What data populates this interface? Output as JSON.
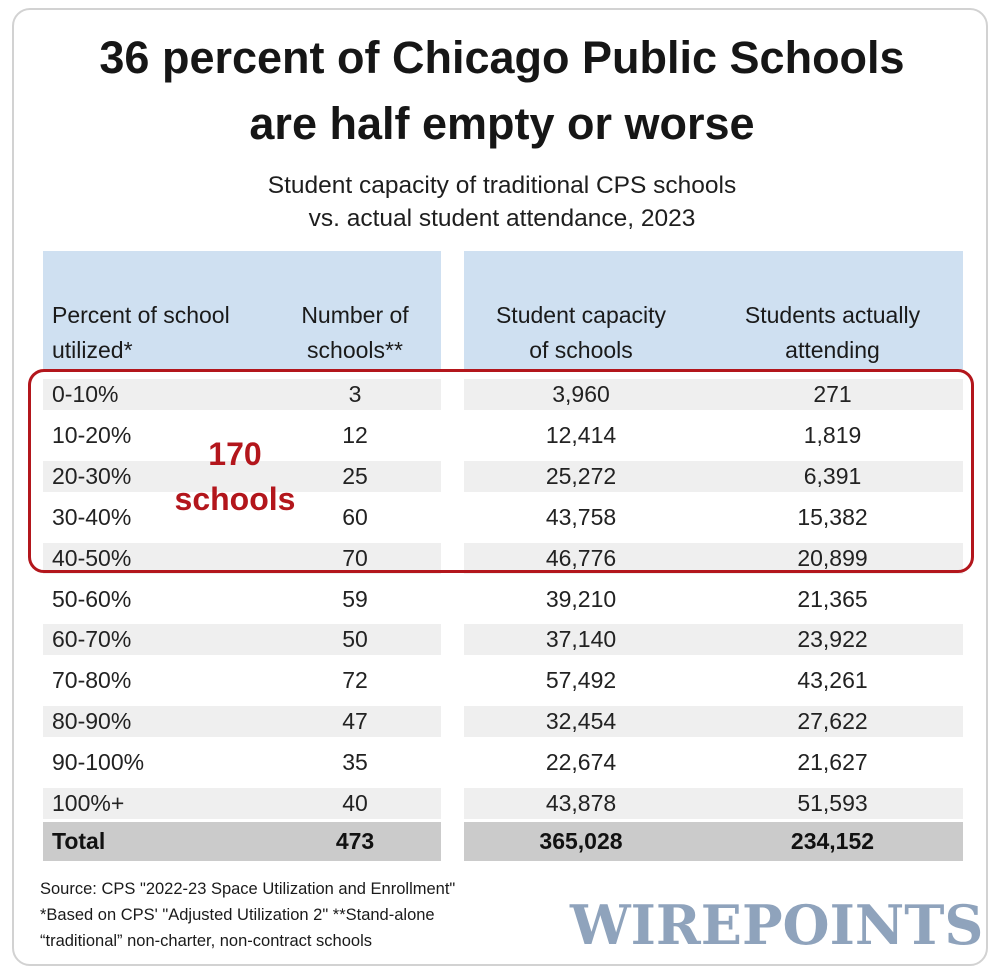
{
  "title_line1": "36 percent of Chicago Public Schools",
  "title_line2": "are half empty or worse",
  "subtitle_line1": "Student capacity of traditional CPS schools",
  "subtitle_line2": "vs. actual student attendance, 2023",
  "headers": [
    {
      "line1": "Percent of school",
      "line2": "utilized*"
    },
    {
      "line1": "Number of",
      "line2": "schools**"
    },
    {
      "line1": "Student capacity",
      "line2": "of schools"
    },
    {
      "line1": "Students actually",
      "line2": "attending"
    }
  ],
  "callout_line1": "170",
  "callout_line2": "schools",
  "colors": {
    "header_bg": "#cfe0f1",
    "highlight": "#b3161c",
    "total_bg": "#cbcbcb",
    "brand": "#8fa3bc"
  },
  "chart_data": {
    "type": "table",
    "columns": [
      "Percent of school utilized*",
      "Number of schools**",
      "Student capacity of schools",
      "Students actually attending"
    ],
    "rows": [
      [
        "0-10%",
        "3",
        "3,960",
        "271"
      ],
      [
        "10-20%",
        "12",
        "12,414",
        "1,819"
      ],
      [
        "20-30%",
        "25",
        "25,272",
        "6,391"
      ],
      [
        "30-40%",
        "60",
        "43,758",
        "15,382"
      ],
      [
        "40-50%",
        "70",
        "46,776",
        "20,899"
      ],
      [
        "50-60%",
        "59",
        "39,210",
        "21,365"
      ],
      [
        "60-70%",
        "50",
        "37,140",
        "23,922"
      ],
      [
        "70-80%",
        "72",
        "57,492",
        "43,261"
      ],
      [
        "80-90%",
        "47",
        "32,454",
        "27,622"
      ],
      [
        "90-100%",
        "35",
        "22,674",
        "21,627"
      ],
      [
        "100%+",
        "40",
        "43,878",
        "51,593"
      ]
    ],
    "total": [
      "Total",
      "473",
      "365,028",
      "234,152"
    ],
    "highlighted_rows": [
      "0-10%",
      "10-20%",
      "20-30%",
      "30-40%",
      "40-50%"
    ]
  },
  "notes": {
    "source": "Source: CPS \"2022-23 Space Utilization and Enrollment\"",
    "note1": "*Based on CPS' \"Adjusted Utilization 2\"  **Stand-alone",
    "note2": "“traditional” non-charter, non-contract schools"
  },
  "brand": "WIREPOINTS"
}
